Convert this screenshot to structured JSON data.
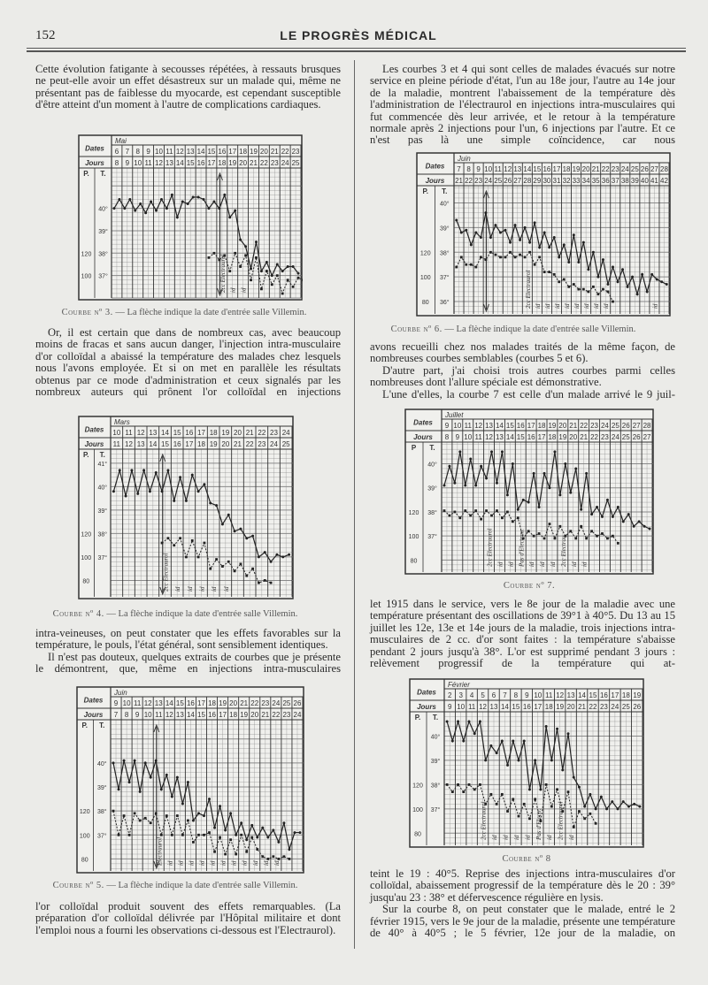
{
  "header": {
    "page_number": "152",
    "journal_title": "LE PROGRÈS MÉDICAL"
  },
  "left_column": {
    "p1": "Cette évolution fatigante à secousses répétées, à ressauts brusques ne peut-elle avoir un effet désastreux sur un malade qui, même ne présentant pas de faiblesse du myocarde, est cependant susceptible d'être atteint d'un moment à l'autre de complications cardiaques.",
    "p2": "Or, il est certain que dans de nombreux cas, avec beaucoup moins de fracas et sans aucun danger, l'injection intra-musculaire d'or colloïdal a abaissé la température des malades chez lesquels nous l'avons employée. Et si on met en parallèle les résultats obtenus par ce mode d'administration et ceux signalés par les nombreux auteurs qui prônent l'or colloïdal en injections",
    "p3a": "intra-veineuses, on peut constater que les effets favorables sur la température, le pouls, l'état général, sont sensiblement identiques.",
    "p3b": "Il n'est pas douteux, quelques extraits de courbes que je présente le démontrent, que, même en injections intra-musculaires",
    "p4": "l'or colloïdal produit souvent des effets remarquables. (La préparation d'or colloïdal délivrée par l'Hôpital militaire et dont l'emploi nous a fourni les observations ci-dessous est l'Electraurol)."
  },
  "right_column": {
    "p1": "Les courbes 3 et 4 qui sont celles de malades évacués sur notre service en pleine période d'état, l'un au 18e jour, l'autre au 14e jour de la maladie, montrent l'abaissement de la température dès l'administration de l'électraurol en injections intra-musculaires qui fut commencée dès leur arrivée, et le retour à la température normale après 2 injections pour l'un, 6 injections par l'autre. Et ce n'est pas là une simple coïncidence, car nous",
    "p2a": "avons recueilli chez nos malades traités de la même façon, de nombreuses courbes semblables (courbes 5 et 6).",
    "p2b": "D'autre part, j'ai choisi trois autres courbes parmi celles nombreuses dont l'allure spéciale est démonstrative.",
    "p2c": "L'une d'elles, la courbe 7 est celle d'un malade arrivé le 9 juil-",
    "p3": "let 1915 dans le service, vers le 8e jour de la maladie avec une température présentant des oscillations de 39°1 à 40°5. Du 13 au 15 juillet les 12e, 13e et 14e jours de la maladie, trois injections intra-musculaires de 2 cc. d'or sont faites : la température s'abaisse pendant 2 jours jusqu'à 38°. L'or est supprimé pendant 3 jours : relèvement progressif de la température qui at-",
    "p4a": "teint le 19 : 40°5. Reprise des injections intra-musculaires d'or colloïdal, abaissement progressif de la température dès le 20 : 39° jusqu'au 23 : 38° et défervescence régulière en lysis.",
    "p4b": "Sur la courbe 8, on peut constater que le malade, entré le 2 février 1915, vers le 9e jour de la maladie, présente une température de 40° à 40°5 ; le 5 février, 12e jour de la maladie, on"
  },
  "chart_data": [
    {
      "id": "c3",
      "type": "line",
      "caption_label": "Courbe nº 3.",
      "caption_text": "— La flèche indique la date d'entrée salle Villemin.",
      "dates_label": "Dates",
      "jours_label": "Jours",
      "p_label": "P.",
      "t_label": "T.",
      "month": "Mai",
      "dates": [
        "6",
        "7",
        "8",
        "9",
        "10",
        "11",
        "12",
        "13",
        "14",
        "15",
        "16",
        "17",
        "18",
        "19",
        "20",
        "21",
        "22",
        "23"
      ],
      "jours": [
        "8",
        "9",
        "10",
        "11",
        "12",
        "13",
        "14",
        "15",
        "16",
        "17",
        "18",
        "19",
        "20",
        "21",
        "22",
        "23",
        "24",
        "25"
      ],
      "ylim": [
        36,
        41.8
      ],
      "t_ticks": [
        "40°",
        "39°",
        "38°",
        "37°"
      ],
      "t_tick_values": [
        40,
        39,
        38,
        37
      ],
      "p_ticks": [
        "120",
        "100"
      ],
      "p_tick_values": [
        120,
        100
      ],
      "arrow_date": "16",
      "temperature": [
        40.0,
        40.4,
        40.0,
        40.4,
        39.9,
        40.2,
        39.8,
        40.3,
        39.9,
        40.4,
        40.0,
        40.6,
        39.6,
        40.3,
        40.2,
        40.5,
        40.5,
        40.4,
        40.0,
        40.3,
        40.0,
        40.6,
        39.6,
        39.9,
        38.6,
        38.3,
        37.3,
        38.5,
        37.2,
        37.6,
        37.0,
        37.5,
        37.2,
        37.4,
        37.4,
        37.1
      ],
      "pulse_start_date": "15",
      "pulse": [
        116,
        120,
        114,
        118,
        104,
        120,
        108,
        118,
        96,
        116,
        88,
        104,
        92,
        100,
        84,
        96,
        90,
        98,
        96
      ],
      "annotations": [
        {
          "date": "16",
          "text": "2cc Electraurol"
        },
        {
          "date": "17",
          "text": "id"
        },
        {
          "date": "18",
          "text": "id"
        }
      ]
    },
    {
      "id": "c4",
      "type": "line",
      "caption_label": "Courbe nº 4.",
      "caption_text": "— La flèche indique la date d'entrée salle Villemin.",
      "dates_label": "Dates",
      "jours_label": "Jours",
      "p_label": "P.",
      "t_label": "T.",
      "month": "Mars",
      "dates": [
        "10",
        "11",
        "12",
        "13",
        "14",
        "15",
        "16",
        "17",
        "18",
        "19",
        "20",
        "21",
        "22",
        "23",
        "24"
      ],
      "jours": [
        "11",
        "12",
        "13",
        "14",
        "15",
        "16",
        "17",
        "18",
        "19",
        "20",
        "21",
        "22",
        "23",
        "24",
        "25"
      ],
      "ylim": [
        35.3,
        41.6
      ],
      "t_ticks": [
        "41°",
        "40°",
        "39°",
        "38°",
        "37°"
      ],
      "t_tick_values": [
        41,
        40,
        39,
        38,
        37
      ],
      "p_ticks": [
        "120",
        "100",
        "80"
      ],
      "p_tick_values": [
        120,
        100,
        80
      ],
      "arrow_date": "14",
      "temperature": [
        39.8,
        40.7,
        39.6,
        40.7,
        39.7,
        40.7,
        39.8,
        40.6,
        39.8,
        40.7,
        39.4,
        40.4,
        39.4,
        40.5,
        39.8,
        40.1,
        39.3,
        39.2,
        38.4,
        38.8,
        38.1,
        38.2,
        37.8,
        37.9,
        37.0,
        37.2,
        36.8,
        37.1,
        37.0,
        37.1
      ],
      "pulse_start_date": "14",
      "pulse": [
        112,
        116,
        110,
        116,
        100,
        114,
        100,
        112,
        90,
        98,
        92,
        96,
        88,
        94,
        84,
        90,
        78,
        80,
        78
      ],
      "annotations": [
        {
          "date": "14",
          "text": "2cc Electraurol"
        },
        {
          "date": "15",
          "text": "id"
        },
        {
          "date": "16",
          "text": "id"
        },
        {
          "date": "17",
          "text": "id"
        },
        {
          "date": "18",
          "text": "id"
        },
        {
          "date": "19",
          "text": "id"
        }
      ]
    },
    {
      "id": "c5",
      "type": "line",
      "caption_label": "Courbe nº 5.",
      "caption_text": "— La flèche indique la date d'entrée salle Villemin.",
      "dates_label": "Dates",
      "jours_label": "Jours",
      "p_label": "P.",
      "t_label": "T.",
      "month": "Juin",
      "dates": [
        "9",
        "10",
        "11",
        "12",
        "13",
        "14",
        "15",
        "16",
        "17",
        "18",
        "19",
        "20",
        "21",
        "22",
        "23",
        "24",
        "25",
        "26"
      ],
      "jours": [
        "7",
        "8",
        "9",
        "10",
        "11",
        "12",
        "13",
        "14",
        "15",
        "16",
        "17",
        "18",
        "19",
        "20",
        "21",
        "22",
        "23",
        "24"
      ],
      "ylim": [
        35.5,
        41.8
      ],
      "t_ticks": [
        "40°",
        "39°",
        "38°",
        "37°"
      ],
      "t_tick_values": [
        40,
        39,
        38,
        37
      ],
      "p_ticks": [
        "120",
        "100",
        "80"
      ],
      "p_tick_values": [
        120,
        100,
        80
      ],
      "arrow_date": "13",
      "temperature": [
        40.0,
        38.9,
        40.1,
        39.2,
        40.1,
        38.8,
        40.0,
        39.4,
        40.1,
        38.9,
        39.5,
        38.6,
        39.4,
        38.3,
        39.2,
        37.6,
        37.9,
        37.8,
        38.5,
        37.3,
        38.2,
        37.2,
        37.9,
        37.0,
        37.5,
        36.8,
        37.4,
        36.9,
        37.3,
        36.9,
        37.2,
        36.7,
        37.5,
        36.4,
        37.1,
        37.1
      ],
      "pulse_start_date": "9",
      "pulse": [
        120,
        100,
        116,
        100,
        118,
        112,
        114,
        110,
        118,
        100,
        116,
        100,
        116,
        100,
        112,
        94,
        100,
        100,
        102,
        86,
        98,
        84,
        96,
        84,
        100,
        86,
        98,
        88,
        82,
        80,
        82,
        80,
        82,
        80
      ],
      "annotations": [
        {
          "date": "13",
          "text": "Electraurol"
        },
        {
          "date": "14",
          "text": "id"
        },
        {
          "date": "15",
          "text": "id"
        },
        {
          "date": "16",
          "text": "id"
        },
        {
          "date": "17",
          "text": "id"
        },
        {
          "date": "18",
          "text": "id"
        },
        {
          "date": "19",
          "text": "id"
        },
        {
          "date": "20",
          "text": "id"
        },
        {
          "date": "21",
          "text": "id"
        },
        {
          "date": "22",
          "text": "id"
        },
        {
          "date": "23",
          "text": "id"
        },
        {
          "date": "24",
          "text": "id"
        }
      ]
    },
    {
      "id": "c6",
      "type": "line",
      "caption_label": "Courbe nº 6.",
      "caption_text": "— La flèche indique la date d'entrée salle Villemin.",
      "dates_label": "Dates",
      "jours_label": "Jours",
      "p_label": "P.",
      "t_label": "T.",
      "month": "Juin",
      "dates": [
        "7",
        "8",
        "9",
        "10",
        "11",
        "12",
        "13",
        "14",
        "15",
        "16",
        "17",
        "18",
        "19",
        "20",
        "21",
        "22",
        "23",
        "24",
        "25",
        "26",
        "27",
        "28"
      ],
      "jours": [
        "21",
        "22",
        "23",
        "24",
        "25",
        "26",
        "27",
        "28",
        "29",
        "30",
        "31",
        "32",
        "33",
        "34",
        "35",
        "36",
        "37",
        "38",
        "39",
        "40",
        "41",
        "42"
      ],
      "ylim": [
        35.5,
        40.7
      ],
      "t_ticks": [
        "40°",
        "39°",
        "38°",
        "37°",
        "36°"
      ],
      "t_tick_values": [
        40,
        39,
        38,
        37,
        36
      ],
      "p_ticks": [
        "120",
        "100",
        "80"
      ],
      "p_tick_values": [
        120,
        100,
        80
      ],
      "arrow_date": "10",
      "temperature": [
        39.3,
        38.8,
        38.9,
        38.3,
        38.8,
        38.6,
        39.6,
        38.6,
        39.1,
        38.8,
        38.9,
        38.4,
        39.1,
        38.5,
        39.0,
        38.4,
        39.2,
        38.2,
        38.8,
        38.2,
        38.6,
        37.8,
        38.3,
        37.6,
        38.7,
        37.6,
        38.4,
        37.3,
        38.0,
        37.0,
        37.7,
        36.7,
        37.4,
        36.8,
        37.3,
        36.6,
        37.0,
        36.3,
        37.1,
        36.4,
        37.1,
        36.9,
        36.8,
        36.7
      ],
      "pulse_start_date": "7",
      "pulse": [
        108,
        116,
        110,
        110,
        108,
        116,
        114,
        120,
        118,
        116,
        116,
        120,
        116,
        118,
        116,
        120,
        110,
        116,
        104,
        104,
        102,
        96,
        98,
        92,
        94,
        90,
        90,
        88,
        92,
        86,
        90,
        88,
        80
      ],
      "annotations": [
        {
          "date": "14",
          "text": "2cc Electraurol"
        },
        {
          "date": "15",
          "text": "id"
        },
        {
          "date": "16",
          "text": "id"
        },
        {
          "date": "17",
          "text": "id"
        },
        {
          "date": "18",
          "text": "id"
        },
        {
          "date": "19",
          "text": "id"
        },
        {
          "date": "20",
          "text": "id"
        },
        {
          "date": "21",
          "text": "id"
        },
        {
          "date": "22",
          "text": "id"
        },
        {
          "date": "27",
          "text": "id"
        }
      ]
    },
    {
      "id": "c7",
      "type": "line",
      "caption_label": "Courbe nº 7.",
      "caption_text": "",
      "dates_label": "Dates",
      "jours_label": "Jours",
      "p_label": "P",
      "t_label": "T.",
      "month": "Juillet",
      "dates": [
        "9",
        "10",
        "11",
        "12",
        "13",
        "14",
        "15",
        "16",
        "17",
        "18",
        "19",
        "20",
        "21",
        "22",
        "23",
        "24",
        "25",
        "26",
        "27",
        "28"
      ],
      "jours": [
        "8",
        "9",
        "10",
        "11",
        "12",
        "13",
        "14",
        "15",
        "16",
        "17",
        "18",
        "19",
        "20",
        "21",
        "22",
        "23",
        "24",
        "25",
        "26",
        "27"
      ],
      "ylim": [
        35.5,
        40.9
      ],
      "t_ticks": [
        "40°",
        "39°",
        "38°",
        "37°"
      ],
      "t_tick_values": [
        40,
        39,
        38,
        37
      ],
      "p_ticks": [
        "120",
        "100",
        "80"
      ],
      "p_tick_values": [
        120,
        100,
        80
      ],
      "arrow_date": null,
      "temperature": [
        39.1,
        39.9,
        39.2,
        40.5,
        39.1,
        40.2,
        39.1,
        39.9,
        39.4,
        40.5,
        39.2,
        40.5,
        38.7,
        40.0,
        38.1,
        38.5,
        38.4,
        39.6,
        38.2,
        39.6,
        39.0,
        40.5,
        38.7,
        40.0,
        38.8,
        39.8,
        38.1,
        39.6,
        37.9,
        38.2,
        37.8,
        38.5,
        37.8,
        38.2,
        37.6,
        37.9,
        37.4,
        37.6,
        37.4,
        37.3
      ],
      "pulse_start_date": "9",
      "pulse": [
        121,
        117,
        120,
        115,
        121,
        117,
        121,
        114,
        121,
        117,
        121,
        115,
        120,
        112,
        115,
        98,
        104,
        100,
        102,
        98,
        110,
        98,
        108,
        100,
        104,
        98,
        108,
        98,
        104,
        100,
        102,
        98,
        100,
        94
      ],
      "annotations": [
        {
          "date": "13",
          "text": "2cc Electraurol"
        },
        {
          "date": "14",
          "text": "id"
        },
        {
          "date": "15",
          "text": "id"
        },
        {
          "date": "16",
          "text": "Pas d'Electrau."
        },
        {
          "date": "17",
          "text": "id"
        },
        {
          "date": "18",
          "text": "id"
        },
        {
          "date": "19",
          "text": "id"
        },
        {
          "date": "20",
          "text": "2cc Electrau."
        },
        {
          "date": "21",
          "text": "id"
        },
        {
          "date": "22",
          "text": "id"
        }
      ]
    },
    {
      "id": "c8",
      "type": "line",
      "caption_label": "Courbe nº 8",
      "caption_text": "",
      "dates_label": "Dates",
      "jours_label": "Jours",
      "p_label": "P.",
      "t_label": "T.",
      "month": "Février",
      "dates": [
        "2",
        "3",
        "4",
        "5",
        "6",
        "7",
        "8",
        "9",
        "10",
        "11",
        "12",
        "13",
        "14",
        "15",
        "16",
        "17",
        "18",
        "19"
      ],
      "jours": [
        "9",
        "10",
        "11",
        "12",
        "13",
        "14",
        "15",
        "16",
        "17",
        "18",
        "19",
        "20",
        "21",
        "22",
        "23",
        "24",
        "25",
        "26"
      ],
      "ylim": [
        35.5,
        41.0
      ],
      "t_ticks": [
        "40°",
        "39°",
        "38°",
        "37°"
      ],
      "t_tick_values": [
        40,
        39,
        38,
        37
      ],
      "p_ticks": [
        "120",
        "100",
        "80"
      ],
      "p_tick_values": [
        120,
        100,
        80
      ],
      "arrow_date": null,
      "temperature": [
        40.6,
        39.8,
        40.6,
        39.8,
        40.6,
        40.1,
        40.6,
        39.0,
        39.6,
        39.3,
        39.8,
        38.8,
        39.8,
        39.0,
        39.8,
        37.8,
        39.0,
        37.8,
        40.4,
        39.0,
        40.3,
        38.6,
        40.1,
        38.3,
        37.9,
        37.1,
        37.6,
        37.0,
        37.5,
        37.0,
        37.3,
        37.0,
        37.3,
        37.1,
        37.2,
        37.1
      ],
      "pulse_start_date": "2",
      "pulse": [
        120,
        114,
        120,
        114,
        120,
        116,
        120,
        104,
        112,
        104,
        112,
        98,
        108,
        94,
        104,
        92,
        108,
        90,
        120,
        102,
        116,
        98,
        114,
        85,
        98,
        92,
        96,
        88
      ],
      "annotations": [
        {
          "date": "5",
          "text": "2cc Electraurol"
        },
        {
          "date": "6",
          "text": "id"
        },
        {
          "date": "7",
          "text": "id"
        },
        {
          "date": "8",
          "text": "id"
        },
        {
          "date": "9",
          "text": "id"
        },
        {
          "date": "10",
          "text": "Pas d'Electr."
        },
        {
          "date": "11",
          "text": "id"
        },
        {
          "date": "12",
          "text": "2cc Electraurol"
        },
        {
          "date": "13",
          "text": "id"
        }
      ]
    }
  ],
  "colors": {
    "paper": "#ebebe8",
    "ink": "#2a2a2a",
    "grid": "#8a8a8a"
  }
}
